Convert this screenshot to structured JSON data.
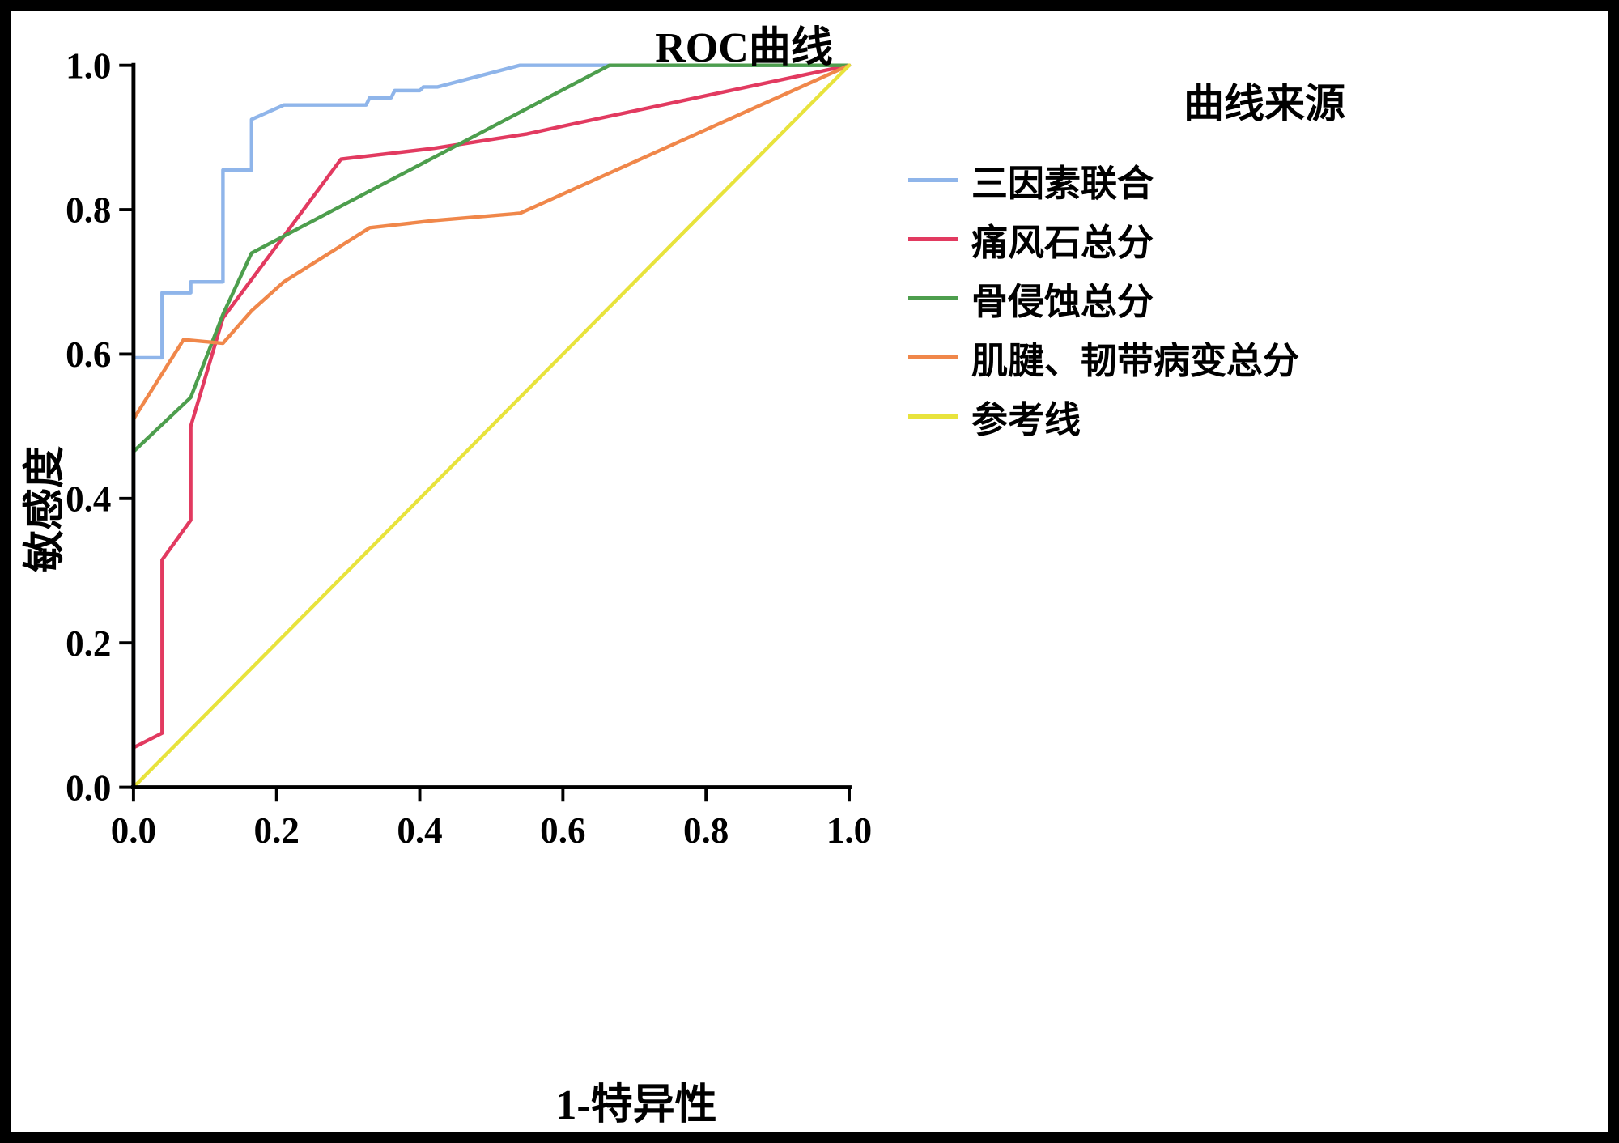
{
  "figure": {
    "title": "ROC曲线",
    "x_axis_label": "1-特异性",
    "y_axis_label": "敏感度"
  },
  "legend": {
    "title": "曲线来源"
  },
  "chart_data": {
    "type": "line",
    "title": "ROC曲线",
    "xlabel": "1-特异性",
    "ylabel": "敏感度",
    "xlim": [
      0,
      1
    ],
    "ylim": [
      0,
      1
    ],
    "x_ticks": [
      "0.0",
      "0.2",
      "0.4",
      "0.6",
      "0.8",
      "1.0"
    ],
    "y_ticks": [
      "0.0",
      "0.2",
      "0.4",
      "0.6",
      "0.8",
      "1.0"
    ],
    "grid": false,
    "legend_position": "right",
    "legend_title": "曲线来源",
    "background_color": "#ffffff",
    "axis_color": "#000000",
    "series": [
      {
        "name": "三因素联合",
        "color": "#8fb5ea",
        "points": [
          [
            0,
            0
          ],
          [
            0,
            0.595
          ],
          [
            0.04,
            0.595
          ],
          [
            0.04,
            0.685
          ],
          [
            0.08,
            0.685
          ],
          [
            0.08,
            0.7
          ],
          [
            0.125,
            0.7
          ],
          [
            0.125,
            0.855
          ],
          [
            0.165,
            0.855
          ],
          [
            0.165,
            0.925
          ],
          [
            0.21,
            0.945
          ],
          [
            0.325,
            0.945
          ],
          [
            0.33,
            0.955
          ],
          [
            0.36,
            0.955
          ],
          [
            0.365,
            0.965
          ],
          [
            0.4,
            0.965
          ],
          [
            0.405,
            0.97
          ],
          [
            0.425,
            0.97
          ],
          [
            0.54,
            1.0
          ],
          [
            1,
            1
          ]
        ]
      },
      {
        "name": "痛风石总分",
        "color": "#e23a60",
        "points": [
          [
            0,
            0.055
          ],
          [
            0.04,
            0.075
          ],
          [
            0.04,
            0.315
          ],
          [
            0.08,
            0.37
          ],
          [
            0.08,
            0.5
          ],
          [
            0.125,
            0.65
          ],
          [
            0.29,
            0.87
          ],
          [
            0.42,
            0.885
          ],
          [
            0.55,
            0.905
          ],
          [
            0.62,
            0.92
          ],
          [
            1,
            1
          ]
        ]
      },
      {
        "name": "骨侵蚀总分",
        "color": "#4d9e4d",
        "points": [
          [
            0,
            0.465
          ],
          [
            0.08,
            0.54
          ],
          [
            0.125,
            0.655
          ],
          [
            0.165,
            0.74
          ],
          [
            0.665,
            1.0
          ],
          [
            1,
            1
          ]
        ]
      },
      {
        "name": "肌腱、韧带病变总分",
        "color": "#f0874a",
        "points": [
          [
            0,
            0.51
          ],
          [
            0.07,
            0.62
          ],
          [
            0.125,
            0.615
          ],
          [
            0.165,
            0.66
          ],
          [
            0.21,
            0.7
          ],
          [
            0.33,
            0.775
          ],
          [
            0.42,
            0.785
          ],
          [
            0.54,
            0.795
          ],
          [
            1,
            1
          ]
        ]
      },
      {
        "name": "参考线",
        "color": "#e8e33c",
        "points": [
          [
            0,
            0
          ],
          [
            1,
            1
          ]
        ]
      }
    ]
  }
}
